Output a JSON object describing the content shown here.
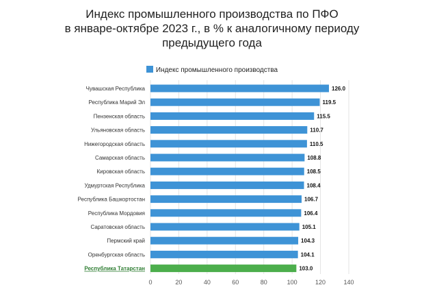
{
  "title_lines": [
    "Индекс промышленного производства по ПФО",
    "в январе-октябре 2023 г., в % к аналогичному периоду",
    "предыдущего года"
  ],
  "colors": {
    "bar": "#3e93d6",
    "highlight_bar": "#4cae4c",
    "highlight_label": "#2e7d32",
    "grid": "#e3e3e3",
    "axis_text": "#555555"
  },
  "chart_data": {
    "type": "bar",
    "orientation": "horizontal",
    "categories": [
      "Чувашская Республика",
      "Республика Марий Эл",
      "Пензенская область",
      "Ульяновская область",
      "Нижегородская область",
      "Самарская область",
      "Кировская область",
      "Удмуртская Республика",
      "Республика Башкортостан",
      "Республика Мордовия",
      "Саратовская область",
      "Пермский край",
      "Оренбургская область",
      "Республика Татарстан"
    ],
    "series": [
      {
        "name": "Индекс промышленного производства",
        "values": [
          126.0,
          119.5,
          115.5,
          110.7,
          110.5,
          108.8,
          108.5,
          108.4,
          106.7,
          106.4,
          105.1,
          104.3,
          104.1,
          103.0
        ],
        "value_labels": [
          "126.0",
          "119.5",
          "115.5",
          "110.7",
          "110.5",
          "108.8",
          "108.5",
          "108.4",
          "106.7",
          "106.4",
          "105.1",
          "104.3",
          "104.1",
          "103.0"
        ]
      }
    ],
    "highlight_category": "Республика Татарстан",
    "xlim": [
      0,
      140
    ],
    "xticks": [
      0,
      20,
      40,
      60,
      80,
      100,
      120,
      140
    ],
    "xtick_labels": [
      "0",
      "20",
      "40",
      "60",
      "80",
      "100",
      "120",
      "140"
    ],
    "grid": "vertical",
    "legend": "top-center"
  }
}
